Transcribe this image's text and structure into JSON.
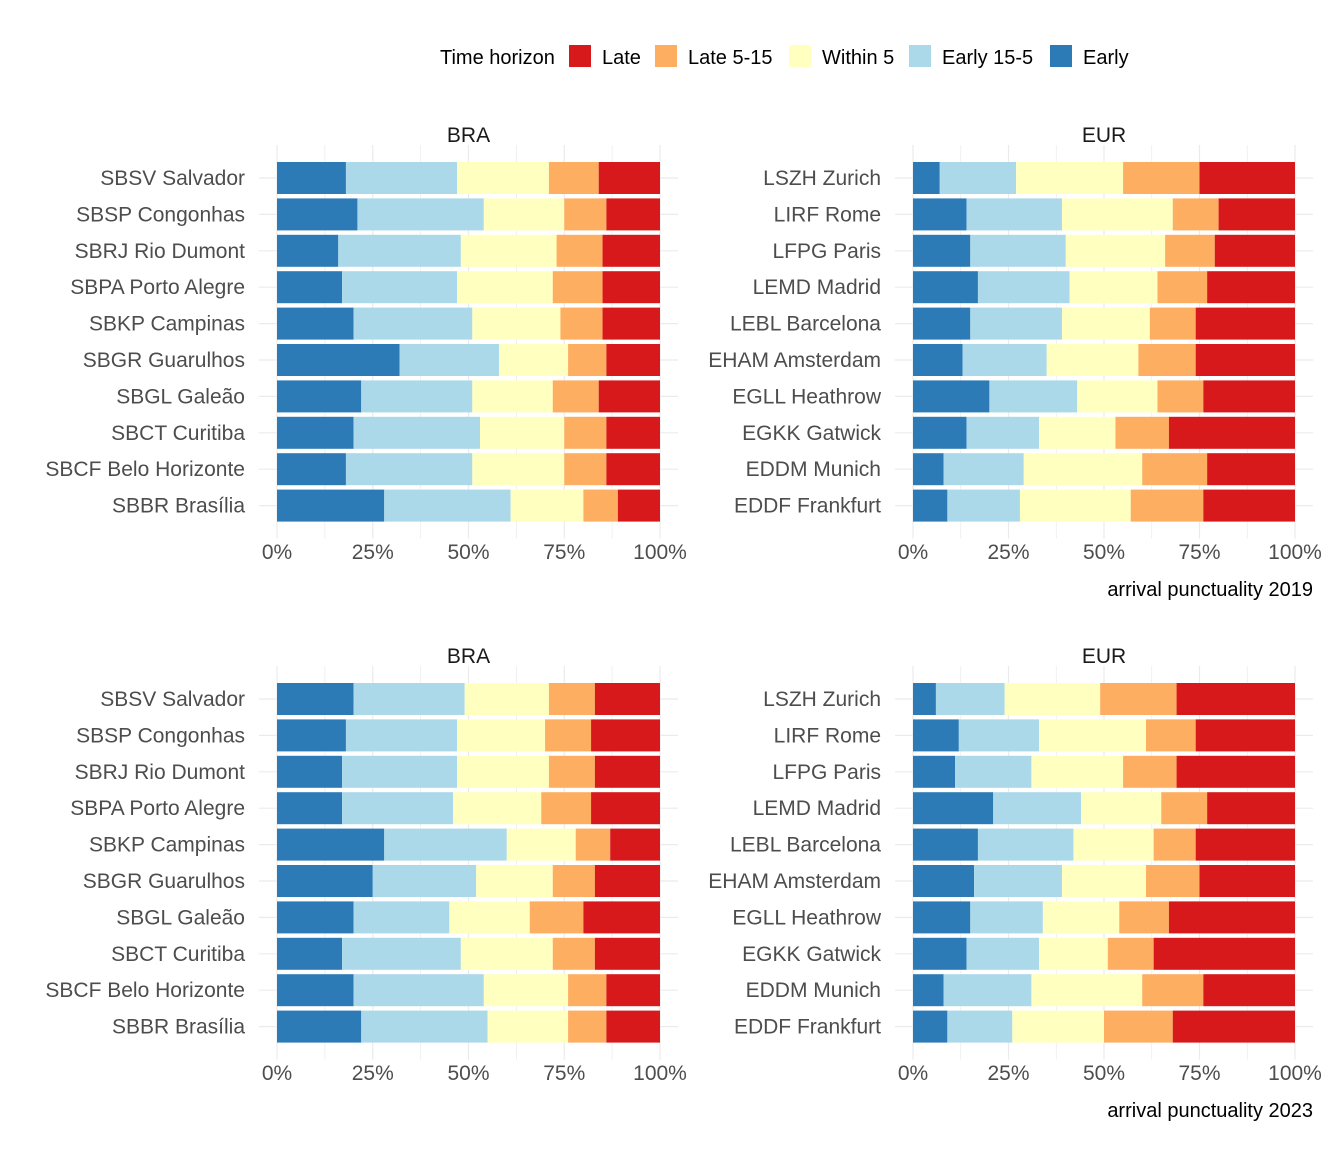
{
  "legend": {
    "title": "Time horizon",
    "items": [
      {
        "label": "Late",
        "color": "#d7191c"
      },
      {
        "label": "Late 5-15",
        "color": "#fdae61"
      },
      {
        "label": "Within 5",
        "color": "#ffffbf"
      },
      {
        "label": "Early 15-5",
        "color": "#abd9e9"
      },
      {
        "label": "Early",
        "color": "#2c7bb6"
      }
    ]
  },
  "chart_data": [
    {
      "type": "bar",
      "stacked": "percent",
      "orientation": "horizontal",
      "facet": "BRA",
      "caption": "",
      "series_order": [
        "Early",
        "Early 15-5",
        "Within 5",
        "Late 5-15",
        "Late"
      ],
      "xlim": [
        0,
        1
      ],
      "xticks": [
        "0%",
        "25%",
        "50%",
        "75%",
        "100%"
      ],
      "categories": [
        "SBSV Salvador",
        "SBSP Congonhas",
        "SBRJ Rio Dumont",
        "SBPA Porto Alegre",
        "SBKP Campinas",
        "SBGR Guarulhos",
        "SBGL Galeão",
        "SBCT Curitiba",
        "SBCF Belo Horizonte",
        "SBBR Brasília"
      ],
      "values": [
        [
          0.18,
          0.29,
          0.24,
          0.13,
          0.16
        ],
        [
          0.21,
          0.33,
          0.21,
          0.11,
          0.14
        ],
        [
          0.16,
          0.32,
          0.25,
          0.12,
          0.15
        ],
        [
          0.17,
          0.3,
          0.25,
          0.13,
          0.15
        ],
        [
          0.2,
          0.31,
          0.23,
          0.11,
          0.15
        ],
        [
          0.32,
          0.26,
          0.18,
          0.1,
          0.14
        ],
        [
          0.22,
          0.29,
          0.21,
          0.12,
          0.16
        ],
        [
          0.2,
          0.33,
          0.22,
          0.11,
          0.14
        ],
        [
          0.18,
          0.33,
          0.24,
          0.11,
          0.14
        ],
        [
          0.28,
          0.33,
          0.19,
          0.09,
          0.11
        ]
      ]
    },
    {
      "type": "bar",
      "stacked": "percent",
      "orientation": "horizontal",
      "facet": "EUR",
      "caption": "arrival punctuality 2019",
      "series_order": [
        "Early",
        "Early 15-5",
        "Within 5",
        "Late 5-15",
        "Late"
      ],
      "xlim": [
        0,
        1
      ],
      "xticks": [
        "0%",
        "25%",
        "50%",
        "75%",
        "100%"
      ],
      "categories": [
        "LSZH Zurich",
        "LIRF Rome",
        "LFPG Paris",
        "LEMD Madrid",
        "LEBL Barcelona",
        "EHAM Amsterdam",
        "EGLL Heathrow",
        "EGKK Gatwick",
        "EDDM Munich",
        "EDDF Frankfurt"
      ],
      "values": [
        [
          0.07,
          0.2,
          0.28,
          0.2,
          0.25
        ],
        [
          0.14,
          0.25,
          0.29,
          0.12,
          0.2
        ],
        [
          0.15,
          0.25,
          0.26,
          0.13,
          0.21
        ],
        [
          0.17,
          0.24,
          0.23,
          0.13,
          0.23
        ],
        [
          0.15,
          0.24,
          0.23,
          0.12,
          0.26
        ],
        [
          0.13,
          0.22,
          0.24,
          0.15,
          0.26
        ],
        [
          0.2,
          0.23,
          0.21,
          0.12,
          0.24
        ],
        [
          0.14,
          0.19,
          0.2,
          0.14,
          0.33
        ],
        [
          0.08,
          0.21,
          0.31,
          0.17,
          0.23
        ],
        [
          0.09,
          0.19,
          0.29,
          0.19,
          0.24
        ]
      ]
    },
    {
      "type": "bar",
      "stacked": "percent",
      "orientation": "horizontal",
      "facet": "BRA",
      "caption": "",
      "series_order": [
        "Early",
        "Early 15-5",
        "Within 5",
        "Late 5-15",
        "Late"
      ],
      "xlim": [
        0,
        1
      ],
      "xticks": [
        "0%",
        "25%",
        "50%",
        "75%",
        "100%"
      ],
      "categories": [
        "SBSV Salvador",
        "SBSP Congonhas",
        "SBRJ Rio Dumont",
        "SBPA Porto Alegre",
        "SBKP Campinas",
        "SBGR Guarulhos",
        "SBGL Galeão",
        "SBCT Curitiba",
        "SBCF Belo Horizonte",
        "SBBR Brasília"
      ],
      "values": [
        [
          0.2,
          0.29,
          0.22,
          0.12,
          0.17
        ],
        [
          0.18,
          0.29,
          0.23,
          0.12,
          0.18
        ],
        [
          0.17,
          0.3,
          0.24,
          0.12,
          0.17
        ],
        [
          0.17,
          0.29,
          0.23,
          0.13,
          0.18
        ],
        [
          0.28,
          0.32,
          0.18,
          0.09,
          0.13
        ],
        [
          0.25,
          0.27,
          0.2,
          0.11,
          0.17
        ],
        [
          0.2,
          0.25,
          0.21,
          0.14,
          0.2
        ],
        [
          0.17,
          0.31,
          0.24,
          0.11,
          0.17
        ],
        [
          0.2,
          0.34,
          0.22,
          0.1,
          0.14
        ],
        [
          0.22,
          0.33,
          0.21,
          0.1,
          0.14
        ]
      ]
    },
    {
      "type": "bar",
      "stacked": "percent",
      "orientation": "horizontal",
      "facet": "EUR",
      "caption": "arrival punctuality 2023",
      "series_order": [
        "Early",
        "Early 15-5",
        "Within 5",
        "Late 5-15",
        "Late"
      ],
      "xlim": [
        0,
        1
      ],
      "xticks": [
        "0%",
        "25%",
        "50%",
        "75%",
        "100%"
      ],
      "categories": [
        "LSZH Zurich",
        "LIRF Rome",
        "LFPG Paris",
        "LEMD Madrid",
        "LEBL Barcelona",
        "EHAM Amsterdam",
        "EGLL Heathrow",
        "EGKK Gatwick",
        "EDDM Munich",
        "EDDF Frankfurt"
      ],
      "values": [
        [
          0.06,
          0.18,
          0.25,
          0.2,
          0.31
        ],
        [
          0.12,
          0.21,
          0.28,
          0.13,
          0.26
        ],
        [
          0.11,
          0.2,
          0.24,
          0.14,
          0.31
        ],
        [
          0.21,
          0.23,
          0.21,
          0.12,
          0.23
        ],
        [
          0.17,
          0.25,
          0.21,
          0.11,
          0.26
        ],
        [
          0.16,
          0.23,
          0.22,
          0.14,
          0.25
        ],
        [
          0.15,
          0.19,
          0.2,
          0.13,
          0.33
        ],
        [
          0.14,
          0.19,
          0.18,
          0.12,
          0.37
        ],
        [
          0.08,
          0.23,
          0.29,
          0.16,
          0.24
        ],
        [
          0.09,
          0.17,
          0.24,
          0.18,
          0.32
        ]
      ]
    }
  ]
}
